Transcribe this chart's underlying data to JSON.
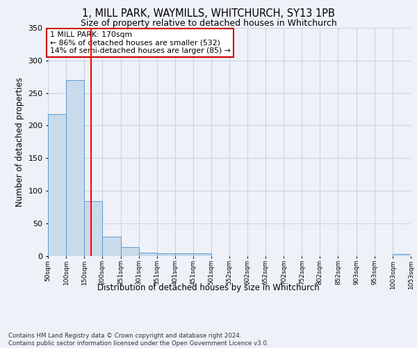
{
  "title": "1, MILL PARK, WAYMILLS, WHITCHURCH, SY13 1PB",
  "subtitle": "Size of property relative to detached houses in Whitchurch",
  "xlabel": "Distribution of detached houses by size in Whitchurch",
  "ylabel": "Number of detached properties",
  "bar_edges": [
    50,
    100,
    150,
    200,
    251,
    301,
    351,
    401,
    451,
    501,
    552,
    602,
    652,
    702,
    752,
    802,
    852,
    903,
    953,
    1003,
    1053
  ],
  "bar_heights": [
    218,
    270,
    84,
    29,
    13,
    5,
    4,
    4,
    4,
    0,
    0,
    0,
    0,
    0,
    0,
    0,
    0,
    0,
    0,
    3,
    0
  ],
  "bar_color": "#c9daea",
  "bar_edge_color": "#5b9bd5",
  "grid_color": "#c8d4e4",
  "background_color": "#eef2f8",
  "red_line_x": 170,
  "annotation_text": "1 MILL PARK: 170sqm\n← 86% of detached houses are smaller (532)\n14% of semi-detached houses are larger (85) →",
  "annotation_box_color": "#ffffff",
  "annotation_box_edge_color": "#cc0000",
  "footer_text": "Contains HM Land Registry data © Crown copyright and database right 2024.\nContains public sector information licensed under the Open Government Licence v3.0.",
  "tick_labels": [
    "50sqm",
    "100sqm",
    "150sqm",
    "200sqm",
    "251sqm",
    "301sqm",
    "351sqm",
    "401sqm",
    "451sqm",
    "501sqm",
    "552sqm",
    "602sqm",
    "652sqm",
    "702sqm",
    "752sqm",
    "802sqm",
    "852sqm",
    "903sqm",
    "953sqm",
    "1003sqm",
    "1053sqm"
  ],
  "ylim": [
    0,
    350
  ],
  "yticks": [
    0,
    50,
    100,
    150,
    200,
    250,
    300,
    350
  ]
}
